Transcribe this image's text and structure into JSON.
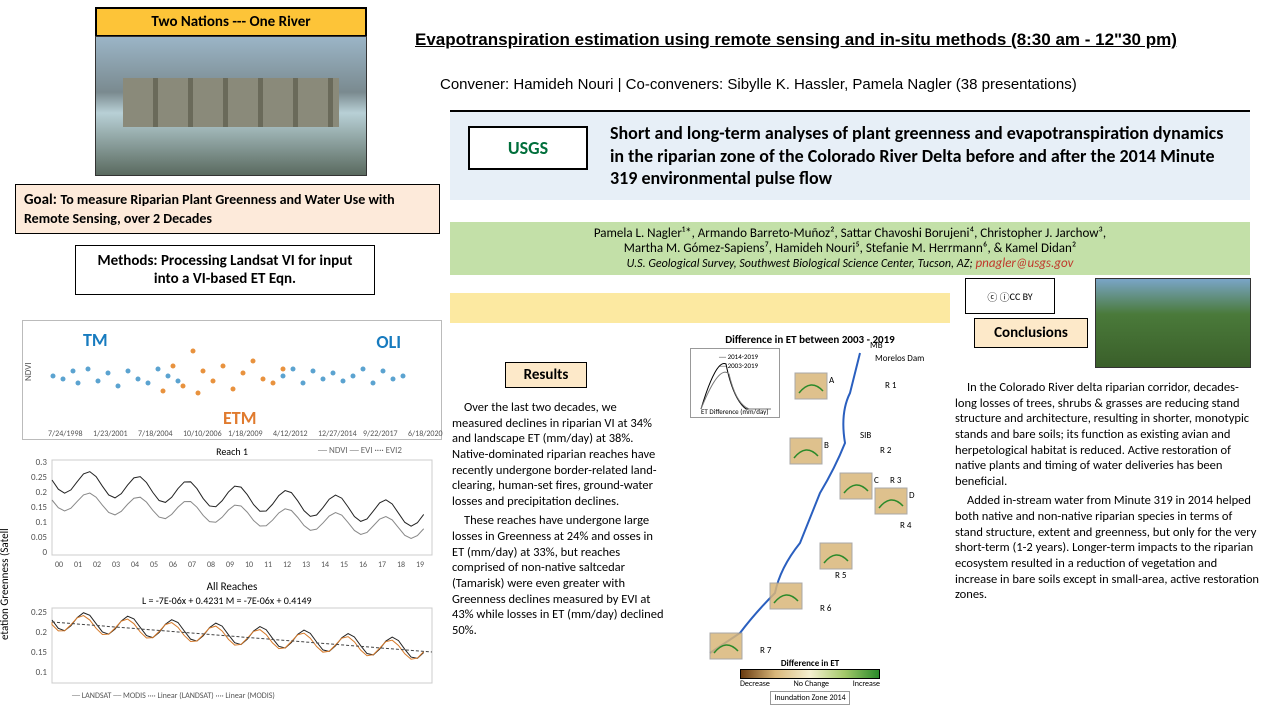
{
  "banner": "Two Nations   ---   One River",
  "goal": {
    "label": "Goal:",
    "text": "To measure Riparian Plant Greenness and Water Use with Remote Sensing, over 2 Decades"
  },
  "methods": "Methods:   Processing Landsat VI for input into a VI-based ET Eqn.",
  "session_title": "Evapotranspiration estimation using remote sensing and in-situ methods (8:30 am - 12\"30 pm)",
  "convener": "Convener: Hamideh Nouri | Co-conveners: Sibylle K. Hassler, Pamela Nagler (38 presentations)",
  "main_title": "Short and long-term analyses of plant greenness and evapotranspiration dynamics in the riparian zone of the Colorado River Delta before and after the 2014 Minute 319 environmental pulse flow",
  "usgs_tag": "USGS",
  "authors_line1": "Pamela L. Nagler¹*, Armando Barreto-Muñoz², Sattar Chavoshi Borujeni⁴, Christopher J. Jarchow³,",
  "authors_line2": "Martha M. Gómez-Sapiens⁷, Hamideh Nouri⁵, Stefanie M. Herrmann⁶, & Kamel Didan²",
  "affiliation": "U.S. Geological Survey, Southwest Biological Science Center, Tucson, AZ;",
  "email": "pnagler@usgs.gov",
  "results_label": "Results",
  "results_p1": "Over the last two decades, we measured declines in riparian VI at 34% and landscape ET (mm/day) at 38%. Native-dominated riparian reaches have recently undergone border-related land-clearing, human-set fires, ground-water losses and precipitation declines.",
  "results_p2": "These reaches have undergone large losses in Greenness at 24% and osses in ET (mm/day) at 33%, but reaches comprised of non-native saltcedar (Tamarisk) were even greater with Greenness declines measured by EVI at 43% while losses in ET (mm/day) declined 50%.",
  "conclusions_label": "Conclusions",
  "conclusions_p1": "In the Colorado River delta riparian corridor, decades-long losses of trees, shrubs & grasses are reducing stand structure and architecture, resulting in shorter, monotypic stands and bare soils; its function as existing avian and herpetological habitat is reduced. Active restoration of native plants and timing of water deliveries has been beneficial.",
  "conclusions_p2": "Added in-stream water from Minute 319 in 2014 helped both native and non-native riparian species in terms of stand structure, extent and greenness, but only for the very short-term (1-2 years).  Longer-term impacts to the riparian ecosystem resulted in a reduction of vegetation and increase in bare soils except in small-area, active restoration zones.",
  "scatter": {
    "label_tm": "TM",
    "label_oli": "OLI",
    "label_etm": "ETM",
    "ylabel": "NDVI",
    "xticks": [
      "7/24/1998",
      "1/23/2001",
      "7/18/2004",
      "10/10/2006",
      "1/18/2009",
      "4/12/2012",
      "12/27/2014",
      "9/22/2017",
      "6/18/2020"
    ],
    "tm_color": "#5ba3d0",
    "etm_color": "#e8923e",
    "points_tm": [
      [
        30,
        55
      ],
      [
        40,
        58
      ],
      [
        50,
        50
      ],
      [
        55,
        62
      ],
      [
        65,
        48
      ],
      [
        75,
        60
      ],
      [
        85,
        52
      ],
      [
        95,
        65
      ],
      [
        105,
        50
      ],
      [
        115,
        58
      ],
      [
        125,
        62
      ],
      [
        135,
        48
      ],
      [
        145,
        55
      ],
      [
        155,
        60
      ],
      [
        260,
        55
      ],
      [
        270,
        48
      ],
      [
        280,
        62
      ],
      [
        290,
        50
      ],
      [
        300,
        58
      ],
      [
        310,
        52
      ],
      [
        320,
        60
      ],
      [
        330,
        55
      ],
      [
        340,
        48
      ],
      [
        350,
        62
      ],
      [
        360,
        50
      ],
      [
        370,
        58
      ],
      [
        380,
        55
      ]
    ],
    "points_etm": [
      [
        140,
        70
      ],
      [
        150,
        45
      ],
      [
        160,
        65
      ],
      [
        170,
        30
      ],
      [
        175,
        72
      ],
      [
        180,
        50
      ],
      [
        190,
        60
      ],
      [
        200,
        45
      ],
      [
        210,
        68
      ],
      [
        220,
        52
      ],
      [
        230,
        40
      ],
      [
        240,
        58
      ],
      [
        250,
        62
      ],
      [
        260,
        48
      ]
    ]
  },
  "line1": {
    "title": "Reach 1",
    "legend": "── NDVI   ── EVI   ···· EVI2",
    "yticks": [
      "0.3",
      "0.25",
      "0.2",
      "0.15",
      "0.1",
      "0.05",
      "0"
    ],
    "xticks": [
      "00",
      "01",
      "02",
      "03",
      "04",
      "05",
      "06",
      "07",
      "08",
      "09",
      "10",
      "11",
      "12",
      "13",
      "14",
      "15",
      "16",
      "17",
      "18",
      "19"
    ],
    "ndvi_color": "#222",
    "evi_color": "#888"
  },
  "line2": {
    "title": "All Reaches",
    "equation": "L = -7E-06x + 0.4231      M = -7E-06x + 0.4149",
    "yticks": [
      "0.25",
      "0.2",
      "0.15",
      "0.1"
    ],
    "legend_items": "── LANDSAT  ── MODIS  ···· Linear (LANDSAT)  ···· Linear (MODIS)",
    "landsat_color": "#222",
    "modis_color": "#d67a2a"
  },
  "ylabel_rot": "etation Greenness (Satell",
  "diffmap": {
    "title": "Difference in ET  between  2003 - 2019",
    "legend_title": "Difference in ET",
    "legend_left": "Decrease",
    "legend_mid": "No Change",
    "legend_right": "Increase",
    "sub_legend": "Inundation Zone 2014",
    "reaches": [
      "MB",
      "Morelos Dam",
      "R 1",
      "SIB",
      "R 2",
      "R 3",
      "R 4",
      "R 5",
      "R 6",
      "R 7"
    ],
    "hist_lines": [
      "── 2014-2019",
      "── 2003-2019"
    ],
    "hist_xlabel": "ET Difference (mm/day)"
  },
  "cc": "CC  BY",
  "colors": {
    "banner_bg": "#fdc438",
    "goal_bg": "#fdeada",
    "title_bg": "#e7eff7",
    "author_bg": "#c3e0a8",
    "box_bg": "#fde9c9"
  }
}
